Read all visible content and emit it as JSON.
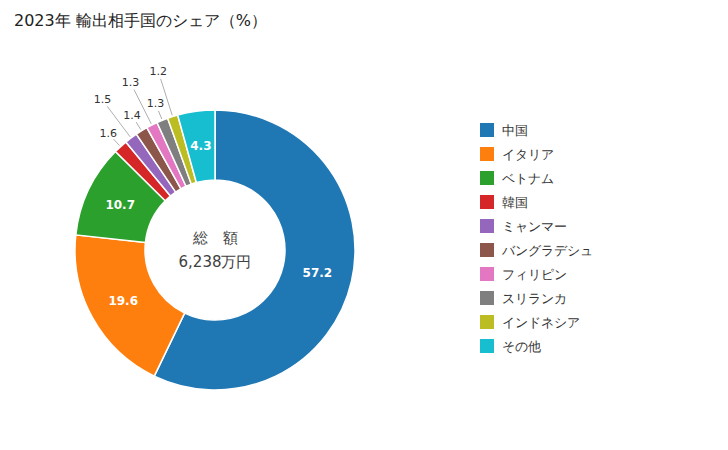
{
  "chart_data": {
    "type": "donut",
    "title": "2023年 輸出相手国のシェア（%）",
    "categories": [
      "中国",
      "イタリア",
      "ベトナム",
      "韓国",
      "ミャンマー",
      "バングラデシュ",
      "フィリピン",
      "スリランカ",
      "インドネシア",
      "その他"
    ],
    "values": [
      57.2,
      19.6,
      10.7,
      1.6,
      1.5,
      1.4,
      1.3,
      1.3,
      1.2,
      4.3
    ],
    "annotations": [
      "総　額",
      "6,238万円"
    ],
    "data_labels": true,
    "legend": "right"
  }
}
